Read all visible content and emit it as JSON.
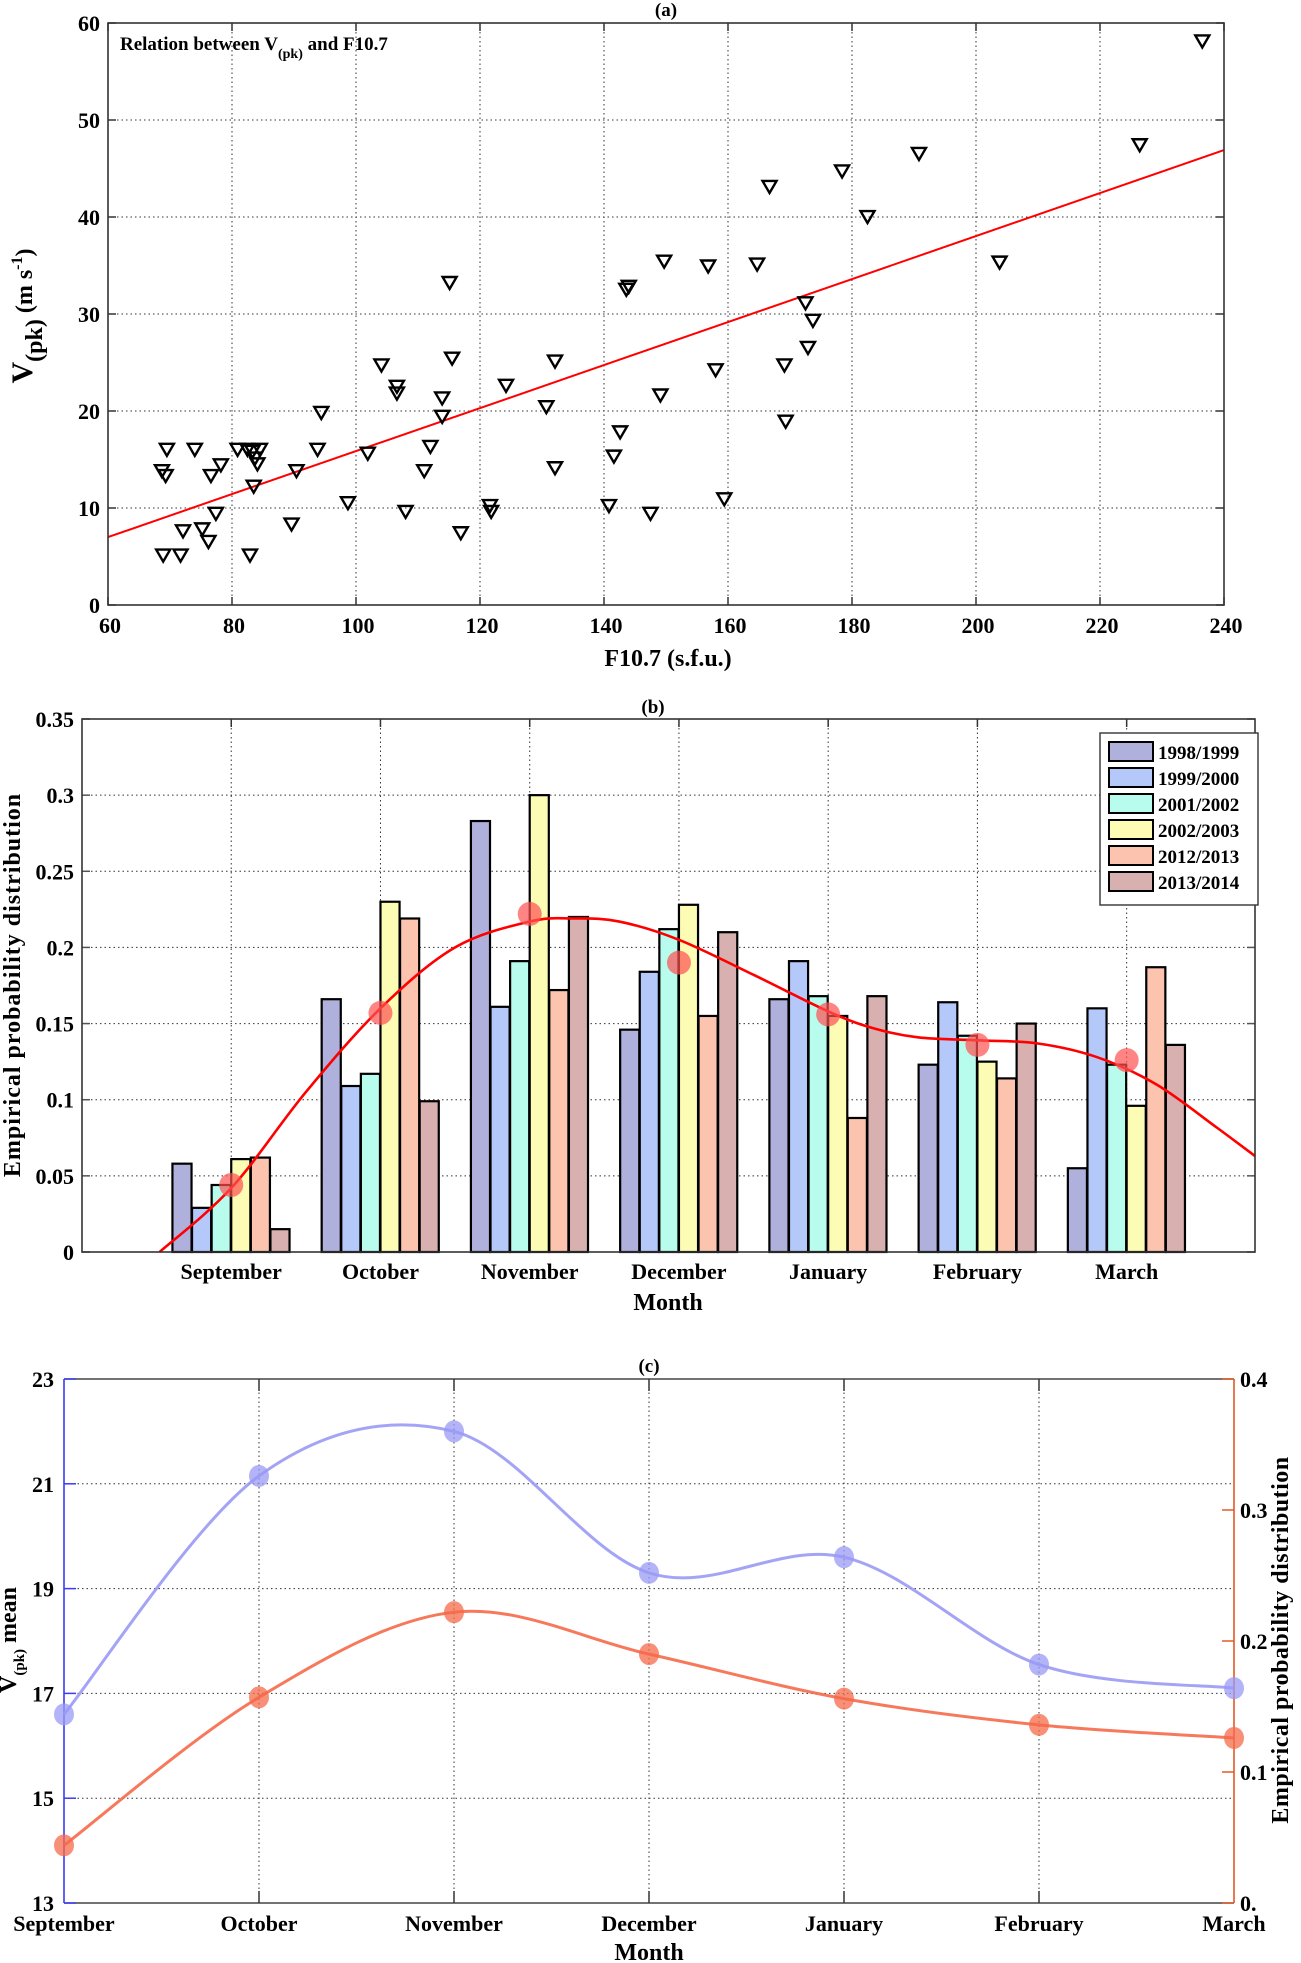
{
  "figure": {
    "panel_a": {
      "label": "(a)"
    },
    "panel_b": {
      "label": "(b)"
    },
    "panel_c": {
      "label": "(c)"
    }
  },
  "chart_data": [
    {
      "id": "a",
      "type": "scatter",
      "title": "(a)",
      "annotation": {
        "text_main": "Relation between V",
        "text_sub": "(pk)",
        "text_tail": " and F10.7"
      },
      "xlabel": "F10.7 (s.f.u.)",
      "ylabel": {
        "main": "V",
        "sub": "(pk)",
        "tail": " (m s",
        "sup": "-1",
        "end": ")"
      },
      "xlim": [
        60,
        240
      ],
      "ylim": [
        0,
        60
      ],
      "xticks": [
        60,
        80,
        100,
        120,
        140,
        160,
        180,
        200,
        220,
        240
      ],
      "yticks": [
        0,
        10,
        20,
        30,
        40,
        50,
        60
      ],
      "grid": true,
      "marker": "down-triangle",
      "marker_color": "#000000",
      "points": [
        [
          68.9,
          5.2
        ],
        [
          71.7,
          5.2
        ],
        [
          82.9,
          5.2
        ],
        [
          68.7,
          13.9
        ],
        [
          69.3,
          13.4
        ],
        [
          69.5,
          16.1
        ],
        [
          74.0,
          16.1
        ],
        [
          72.1,
          7.7
        ],
        [
          75.2,
          7.9
        ],
        [
          76.2,
          6.6
        ],
        [
          76.6,
          13.4
        ],
        [
          77.4,
          9.5
        ],
        [
          78.2,
          14.5
        ],
        [
          80.9,
          16.1
        ],
        [
          82.5,
          16.1
        ],
        [
          83.3,
          15.9
        ],
        [
          83.7,
          15.2
        ],
        [
          84.1,
          14.6
        ],
        [
          84.5,
          16.1
        ],
        [
          83.5,
          12.3
        ],
        [
          89.6,
          8.4
        ],
        [
          90.4,
          13.9
        ],
        [
          93.8,
          16.1
        ],
        [
          94.4,
          19.9
        ],
        [
          98.7,
          10.6
        ],
        [
          101.9,
          15.7
        ],
        [
          104.1,
          24.8
        ],
        [
          106.6,
          22.6
        ],
        [
          106.6,
          21.9
        ],
        [
          108.0,
          9.7
        ],
        [
          111.0,
          13.9
        ],
        [
          112.0,
          16.4
        ],
        [
          113.9,
          21.4
        ],
        [
          113.9,
          19.5
        ],
        [
          115.1,
          33.3
        ],
        [
          115.5,
          25.5
        ],
        [
          116.9,
          7.5
        ],
        [
          121.6,
          10.3
        ],
        [
          121.8,
          9.7
        ],
        [
          124.2,
          22.7
        ],
        [
          130.7,
          20.5
        ],
        [
          132.1,
          25.2
        ],
        [
          132.1,
          14.2
        ],
        [
          140.8,
          10.3
        ],
        [
          141.6,
          15.4
        ],
        [
          142.6,
          17.9
        ],
        [
          143.6,
          32.6
        ],
        [
          144.0,
          32.9
        ],
        [
          147.5,
          9.5
        ],
        [
          149.1,
          21.7
        ],
        [
          149.7,
          35.5
        ],
        [
          156.8,
          35.0
        ],
        [
          158.0,
          24.3
        ],
        [
          159.4,
          11.0
        ],
        [
          164.7,
          35.2
        ],
        [
          166.7,
          43.2
        ],
        [
          169.1,
          24.8
        ],
        [
          169.3,
          19.0
        ],
        [
          172.5,
          31.2
        ],
        [
          172.9,
          26.6
        ],
        [
          173.7,
          29.4
        ],
        [
          178.4,
          44.8
        ],
        [
          182.5,
          40.1
        ],
        [
          190.8,
          46.6
        ],
        [
          203.8,
          35.4
        ],
        [
          226.4,
          47.5
        ],
        [
          236.5,
          58.2
        ]
      ],
      "fit_line": {
        "color": "#ff0000",
        "x": [
          60,
          240
        ],
        "y": [
          7.0,
          46.9
        ]
      }
    },
    {
      "id": "b",
      "type": "bar",
      "title": "(b)",
      "xlabel": "Month",
      "ylabel": "Empirical probability distribution",
      "categories": [
        "September",
        "October",
        "November",
        "December",
        "January",
        "February",
        "March"
      ],
      "ylim": [
        0,
        0.35
      ],
      "xlim": [
        0,
        7.86
      ],
      "yticks": [
        0,
        0.05,
        0.1,
        0.15,
        0.2,
        0.25,
        0.3,
        0.35
      ],
      "ytick_labels": [
        "0",
        "0.05",
        "0.1",
        "0.15",
        "0.2",
        "0.25",
        "0.3",
        "0.35"
      ],
      "grid": true,
      "legend_position": "top-right",
      "series": [
        {
          "name": "1998/1999",
          "color": "#b0b0dc",
          "values": [
            0.058,
            0.166,
            0.283,
            0.146,
            0.166,
            0.123,
            0.055
          ]
        },
        {
          "name": "1999/2000",
          "color": "#b4c8fa",
          "values": [
            0.029,
            0.109,
            0.161,
            0.184,
            0.191,
            0.164,
            0.16
          ]
        },
        {
          "name": "2001/2002",
          "color": "#b8fcee",
          "values": [
            0.044,
            0.117,
            0.191,
            0.212,
            0.168,
            0.142,
            0.123
          ]
        },
        {
          "name": "2002/2003",
          "color": "#fcfcb4",
          "values": [
            0.061,
            0.23,
            0.3,
            0.228,
            0.155,
            0.125,
            0.096
          ]
        },
        {
          "name": "2012/2013",
          "color": "#fcc4ae",
          "values": [
            0.062,
            0.219,
            0.172,
            0.155,
            0.088,
            0.114,
            0.187
          ]
        },
        {
          "name": "2013/2014",
          "color": "#d8b0b0",
          "values": [
            0.015,
            0.099,
            0.22,
            0.21,
            0.168,
            0.15,
            0.136
          ]
        }
      ],
      "mean_markers": {
        "color": "#ff5050",
        "values": [
          0.044,
          0.157,
          0.222,
          0.19,
          0.156,
          0.136,
          0.126
        ]
      },
      "fit_curve": {
        "color": "#ff0000",
        "x": [
          0.52,
          1.0,
          1.5,
          2.0,
          2.5,
          3.0,
          3.3,
          3.6,
          4.0,
          4.5,
          5.0,
          5.3,
          5.6,
          6.0,
          6.4,
          6.8,
          7.2,
          7.6,
          7.86
        ],
        "y": [
          0.0,
          0.042,
          0.105,
          0.16,
          0.2,
          0.217,
          0.219,
          0.217,
          0.205,
          0.182,
          0.158,
          0.147,
          0.141,
          0.139,
          0.137,
          0.128,
          0.11,
          0.082,
          0.063
        ]
      }
    },
    {
      "id": "c",
      "type": "line",
      "title": "(c)",
      "xlabel": "Month",
      "categories": [
        "September",
        "October",
        "November",
        "December",
        "January",
        "February",
        "March"
      ],
      "grid": true,
      "left_axis": {
        "label": {
          "main": "V",
          "sub": "(pk)",
          "tail": " mean"
        },
        "color": "#3c3cf0",
        "label_color": "#1e6ebe",
        "ylim": [
          13,
          23
        ],
        "yticks": [
          13,
          15,
          17,
          19,
          21,
          23
        ]
      },
      "right_axis": {
        "label": "Empirical probability distribution",
        "color": "#e05a28",
        "ylim": [
          0,
          0.4
        ],
        "yticks": [
          0,
          0.1,
          0.2,
          0.3,
          0.4
        ],
        "ytick_labels": [
          "0.",
          "0.1",
          "0.2",
          "0.3",
          "0.4"
        ]
      },
      "series": [
        {
          "name": "V(pk) mean",
          "axis": "left",
          "color": "#9a9af5",
          "values": [
            16.6,
            21.15,
            22.0,
            19.3,
            19.6,
            17.55,
            17.1
          ]
        },
        {
          "name": "Empirical probability distribution",
          "axis": "right",
          "color": "#f56a4a",
          "values": [
            0.044,
            0.157,
            0.222,
            0.19,
            0.156,
            0.136,
            0.126
          ]
        }
      ]
    }
  ]
}
